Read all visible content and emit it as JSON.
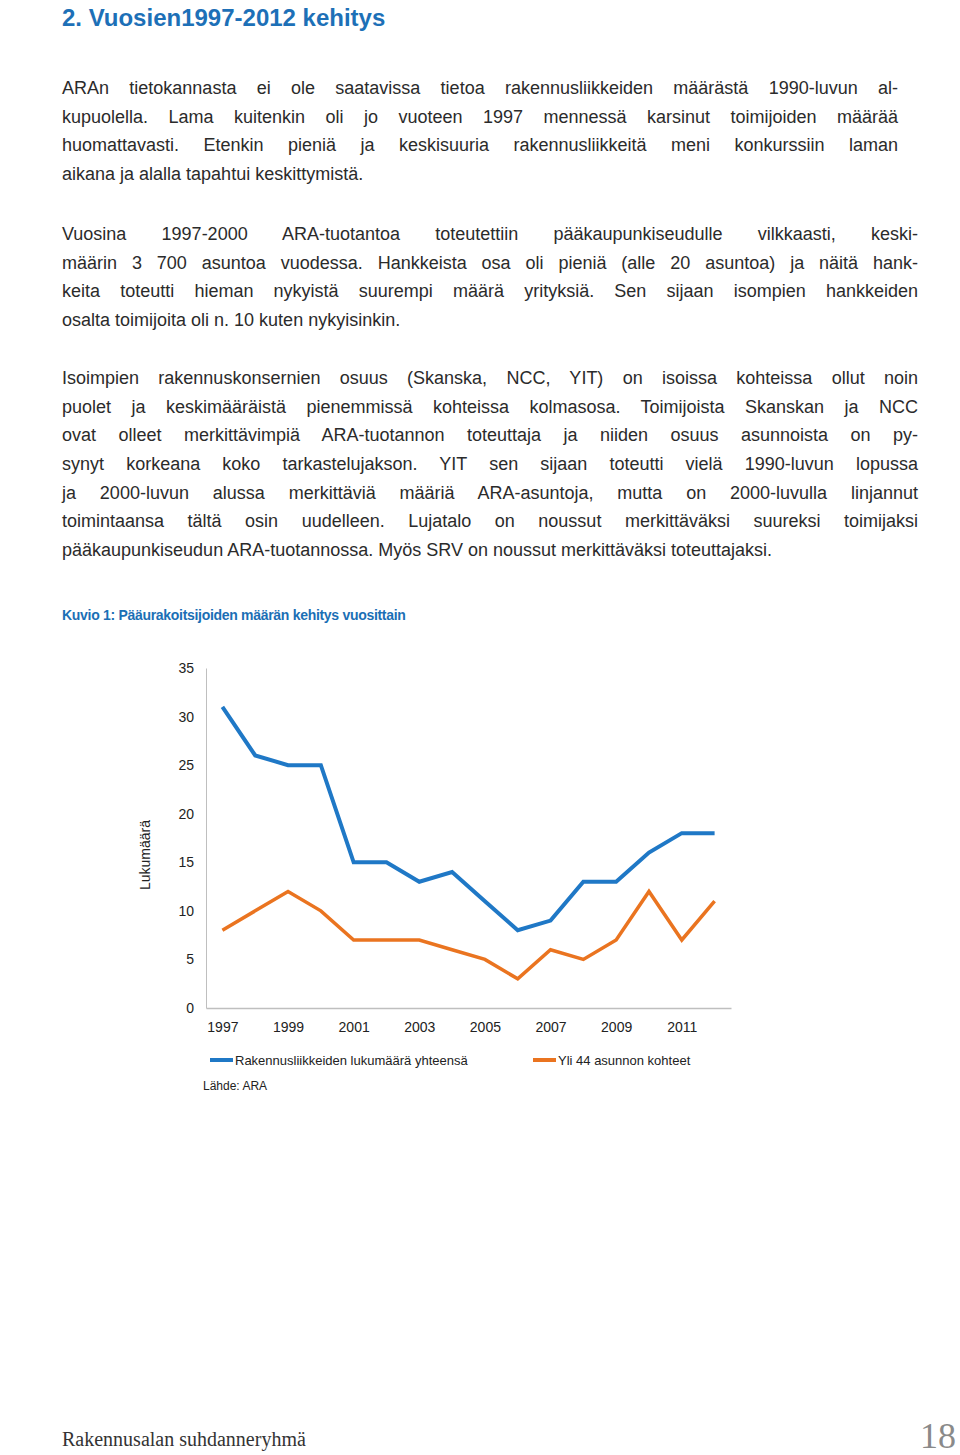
{
  "heading": "2. Vuosien1997-2012 kehitys",
  "paragraphs": [
    [
      "ARAn tietokannasta ei ole saatavissa tietoa rakennusliikkeiden määrästä 1990-luvun al-",
      "kupuolella. Lama kuitenkin oli jo vuoteen 1997 mennessä karsinut toimijoiden määrää",
      "huomattavasti. Etenkin pieniä ja keskisuuria rakennusliikkeitä meni konkurssiin laman",
      "aikana ja alalla tapahtui keskittymistä."
    ],
    [
      "Vuosina 1997-2000 ARA-tuotantoa toteutettiin pääkaupunkiseudulle vilkkaasti, keski-",
      "määrin 3 700 asuntoa vuodessa. Hankkeista osa oli pieniä (alle 20 asuntoa) ja näitä hank-",
      "keita toteutti hieman nykyistä suurempi määrä yrityksiä. Sen sijaan isompien hankkeiden",
      "osalta toimijoita oli n. 10 kuten nykyisinkin."
    ],
    [
      "Isoimpien rakennuskonsernien osuus (Skanska, NCC, YIT) on isoissa kohteissa ollut noin",
      "puolet ja keskimääräistä pienemmissä kohteissa kolmasosa. Toimijoista Skanskan ja NCC",
      "ovat olleet merkittävimpiä ARA-tuotannon toteuttaja ja niiden osuus asunnoista on py-",
      "synyt korkeana koko tarkastelujakson. YIT sen sijaan toteutti vielä 1990-luvun lopussa",
      "ja 2000-luvun alussa merkittäviä määriä ARA-asuntoja, mutta on 2000-luvulla linjannut",
      "toimintaansa tältä osin uudelleen. Lujatalo on noussut merkittäväksi suureksi toimijaksi",
      "pääkaupunkiseudun ARA-tuotannossa. Myös SRV on noussut merkittäväksi toteuttajaksi."
    ]
  ],
  "chart_data": {
    "type": "line",
    "title": "Kuvio 1: Pääurakoitsijoiden määrän kehitys vuosittain",
    "y_label": "Lukumäärä",
    "categories": [
      "1997",
      null,
      "1999",
      null,
      "2001",
      null,
      "2003",
      null,
      "2005",
      null,
      "2007",
      null,
      "2009",
      null,
      "2011",
      null
    ],
    "series": [
      {
        "name": "Rakennusliikkeiden lukumäärä yhteensä",
        "color": "#1f78c6",
        "values": [
          31,
          26,
          25,
          25,
          15,
          15,
          13,
          14,
          11,
          8,
          9,
          13,
          13,
          16,
          18,
          18
        ]
      },
      {
        "name": "Yli 44 asunnon kohteet",
        "color": "#ea7420",
        "values": [
          8,
          10,
          12,
          10,
          7,
          7,
          7,
          6,
          5,
          3,
          6,
          5,
          7,
          12,
          7,
          11
        ]
      }
    ],
    "ylim": [
      0,
      35
    ],
    "yticks": [
      0,
      5,
      10,
      15,
      20,
      25,
      30,
      35
    ],
    "grid": false,
    "legend": "bottom",
    "annotations": [
      "Lähde: ARA"
    ]
  },
  "footer": {
    "left": "Rakennusalan suhdanneryhmä",
    "page_number": 18
  }
}
